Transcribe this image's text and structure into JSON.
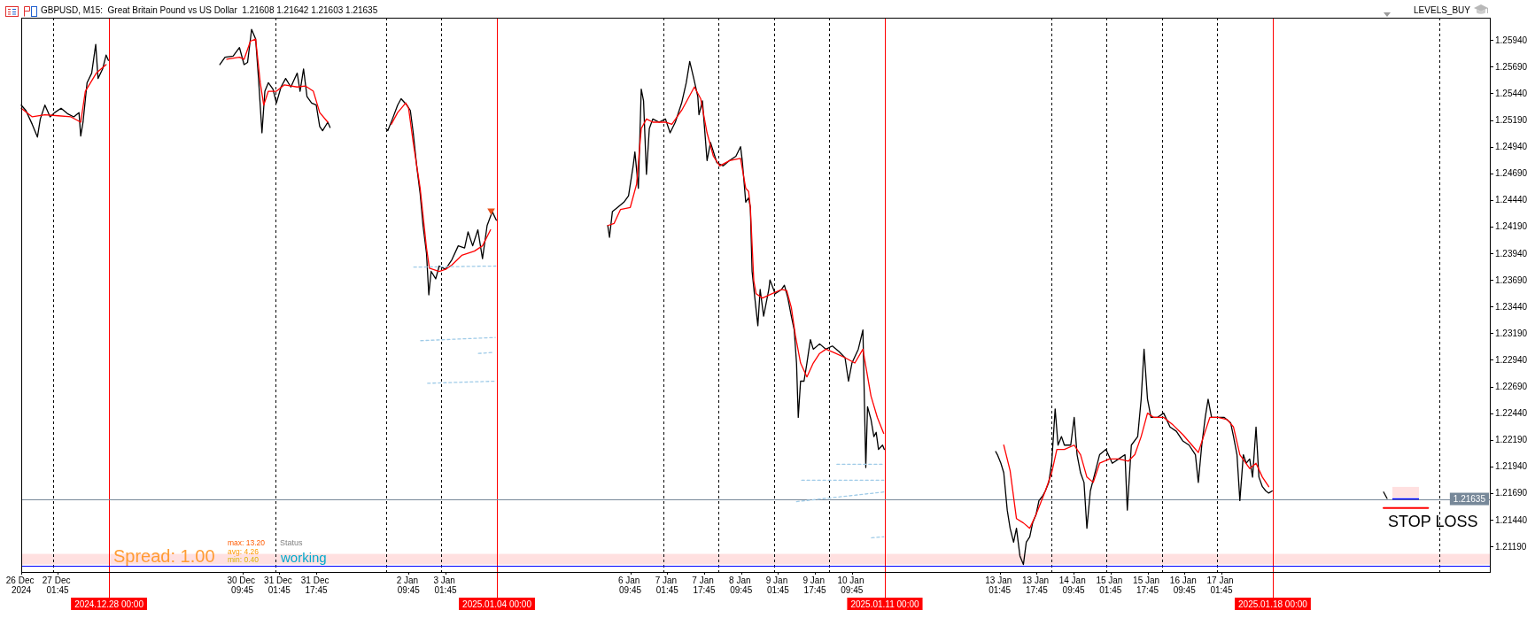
{
  "chart_data": {
    "type": "line",
    "title": "GBPUSD, M15:  Great Britain Pound vs US Dollar  1.21608 1.21642 1.21603 1.21635",
    "xlim": [
      "2024-12-26T10:00",
      "2025-01-21T22:00"
    ],
    "xticks": [
      {
        "value": "2024-12-26T10:00",
        "label": "26 Dec 2024"
      },
      {
        "value": "2024-12-27T01:45",
        "label": "27 Dec 01:45"
      },
      {
        "value": "2024-12-30T09:45",
        "label": "30 Dec 09:45"
      },
      {
        "value": "2024-12-31T01:45",
        "label": "31 Dec 01:45"
      },
      {
        "value": "2024-12-31T17:45",
        "label": "31 Dec 17:45"
      },
      {
        "value": "2025-01-02T09:45",
        "label": "2 Jan 09:45"
      },
      {
        "value": "2025-01-03T01:45",
        "label": "3 Jan 01:45"
      },
      {
        "value": "2025-01-06T09:45",
        "label": "6 Jan 09:45"
      },
      {
        "value": "2025-01-07T01:45",
        "label": "7 Jan 01:45"
      },
      {
        "value": "2025-01-07T17:45",
        "label": "7 Jan 17:45"
      },
      {
        "value": "2025-01-08T09:45",
        "label": "8 Jan 09:45"
      },
      {
        "value": "2025-01-09T01:45",
        "label": "9 Jan 01:45"
      },
      {
        "value": "2025-01-09T17:45",
        "label": "9 Jan 17:45"
      },
      {
        "value": "2025-01-10T09:45",
        "label": "10 Jan 09:45"
      },
      {
        "value": "2025-01-13T01:45",
        "label": "13 Jan 01:45"
      },
      {
        "value": "2025-01-13T17:45",
        "label": "13 Jan 17:45"
      },
      {
        "value": "2025-01-14T09:45",
        "label": "14 Jan 09:45"
      },
      {
        "value": "2025-01-15T01:45",
        "label": "15 Jan 01:45"
      },
      {
        "value": "2025-01-15T17:45",
        "label": "15 Jan 17:45"
      },
      {
        "value": "2025-01-16T09:45",
        "label": "16 Jan 09:45"
      },
      {
        "value": "2025-01-17T01:45",
        "label": "17 Jan 01:45"
      }
    ],
    "ylim": [
      1.2095,
      1.2615
    ],
    "yticks": [
      {
        "value": 1.2119,
        "label": "1.21190"
      },
      {
        "value": 1.2144,
        "label": "1.21440"
      },
      {
        "value": 1.2169,
        "label": "1.21690"
      },
      {
        "value": 1.2194,
        "label": "1.21940"
      },
      {
        "value": 1.2219,
        "label": "1.22190"
      },
      {
        "value": 1.2244,
        "label": "1.22440"
      },
      {
        "value": 1.2269,
        "label": "1.22690"
      },
      {
        "value": 1.2294,
        "label": "1.22940"
      },
      {
        "value": 1.2319,
        "label": "1.23190"
      },
      {
        "value": 1.2344,
        "label": "1.23440"
      },
      {
        "value": 1.2369,
        "label": "1.23690"
      },
      {
        "value": 1.2394,
        "label": "1.23940"
      },
      {
        "value": 1.2419,
        "label": "1.24190"
      },
      {
        "value": 1.2444,
        "label": "1.24440"
      },
      {
        "value": 1.2469,
        "label": "1.24690"
      },
      {
        "value": 1.2494,
        "label": "1.24940"
      },
      {
        "value": 1.2519,
        "label": "1.25190"
      },
      {
        "value": 1.2544,
        "label": "1.25440"
      },
      {
        "value": 1.2569,
        "label": "1.25690"
      },
      {
        "value": 1.2594,
        "label": "1.25940"
      }
    ],
    "series": [
      {
        "color": "#000000",
        "x": [
          "2024-12-26T10:00",
          "2024-12-26T12:00",
          "2024-12-26T14:45",
          "2024-12-26T17:00",
          "2024-12-26T18:15",
          "2024-12-26T20:15",
          "2024-12-26T22:30",
          "2024-12-27T00:30",
          "2024-12-27T03:15",
          "2024-12-27T06:00",
          "2024-12-27T08:45",
          "2024-12-27T11:00",
          "2024-12-27T11:45",
          "2024-12-27T12:45",
          "2024-12-27T14:30",
          "2024-12-27T16:30",
          "2024-12-27T18:15",
          "2024-12-27T19:15",
          "2024-12-27T21:15",
          "2024-12-27T22:45",
          "2024-12-27T23:45",
          "2024-12-29T00:00",
          "2024-12-30T00:00",
          "2024-12-30T02:15",
          "2024-12-30T05:45",
          "2024-12-30T08:30",
          "2024-12-30T10:30",
          "2024-12-30T12:00",
          "2024-12-30T13:45",
          "2024-12-30T15:30",
          "2024-12-30T16:45",
          "2024-12-30T18:15",
          "2024-12-30T19:30",
          "2024-12-30T21:00",
          "2024-12-30T23:00",
          "2024-12-31T00:30",
          "2024-12-31T02:30",
          "2024-12-31T04:30",
          "2024-12-31T06:45",
          "2024-12-31T09:30",
          "2024-12-31T10:45",
          "2024-12-31T12:15",
          "2024-12-31T13:45",
          "2024-12-31T15:45",
          "2024-12-31T17:45",
          "2024-12-31T19:15",
          "2024-12-31T20:30",
          "2024-12-31T22:45",
          "2024-12-31T23:45",
          "2025-01-01T12:00",
          "2025-01-02T00:00",
          "2025-01-02T00:45",
          "2025-01-02T02:45",
          "2025-01-02T05:00",
          "2025-01-02T06:30",
          "2025-01-02T09:00",
          "2025-01-02T10:30",
          "2025-01-02T11:45",
          "2025-01-02T13:15",
          "2025-01-02T14:45",
          "2025-01-02T16:00",
          "2025-01-02T17:30",
          "2025-01-02T18:30",
          "2025-01-02T19:30",
          "2025-01-02T21:30",
          "2025-01-02T23:00",
          "2025-01-03T01:45",
          "2025-01-03T04:30",
          "2025-01-03T07:15",
          "2025-01-03T10:00",
          "2025-01-03T11:30",
          "2025-01-03T13:30",
          "2025-01-03T15:45",
          "2025-01-03T17:45",
          "2025-01-03T19:45",
          "2025-01-03T22:00",
          "2025-01-03T23:45",
          "2025-01-05T00:00",
          "2025-01-06T00:00",
          "2025-01-06T00:45",
          "2025-01-06T02:00",
          "2025-01-06T04:15",
          "2025-01-06T07:00",
          "2025-01-06T09:00",
          "2025-01-06T11:00",
          "2025-01-06T11:45",
          "2025-01-06T13:15",
          "2025-01-06T14:30",
          "2025-01-06T15:30",
          "2025-01-06T16:45",
          "2025-01-06T18:00",
          "2025-01-06T19:30",
          "2025-01-06T22:15",
          "2025-01-07T01:00",
          "2025-01-07T03:00",
          "2025-01-07T05:15",
          "2025-01-07T08:00",
          "2025-01-07T10:00",
          "2025-01-07T11:30",
          "2025-01-07T13:15",
          "2025-01-07T15:00",
          "2025-01-07T15:30",
          "2025-01-07T17:00",
          "2025-01-07T18:00",
          "2025-01-07T19:00",
          "2025-01-07T20:30",
          "2025-01-07T23:15",
          "2025-01-08T02:00",
          "2025-01-08T04:45",
          "2025-01-08T07:30",
          "2025-01-08T09:30",
          "2025-01-08T10:15",
          "2025-01-08T11:45",
          "2025-01-08T13:00",
          "2025-01-08T13:45",
          "2025-01-08T14:30",
          "2025-01-08T15:45",
          "2025-01-08T17:00",
          "2025-01-08T18:00",
          "2025-01-08T19:30",
          "2025-01-08T21:45",
          "2025-01-08T22:15",
          "2025-01-09T00:30",
          "2025-01-09T03:15",
          "2025-01-09T04:30",
          "2025-01-09T06:00",
          "2025-01-09T07:30",
          "2025-01-09T08:45",
          "2025-01-09T09:45",
          "2025-01-09T10:30",
          "2025-01-09T11:30",
          "2025-01-09T13:00",
          "2025-01-09T14:15",
          "2025-01-09T15:45",
          "2025-01-09T17:00",
          "2025-01-09T19:45",
          "2025-01-09T22:30",
          "2025-01-10T01:15",
          "2025-01-10T04:00",
          "2025-01-10T06:45",
          "2025-01-10T08:15",
          "2025-01-10T09:45",
          "2025-01-10T12:30",
          "2025-01-10T14:30",
          "2025-01-10T15:45",
          "2025-01-10T16:30",
          "2025-01-10T18:00",
          "2025-01-10T19:15",
          "2025-01-10T20:15",
          "2025-01-10T21:15",
          "2025-01-10T23:00",
          "2025-01-10T23:45",
          "2025-01-12T00:00",
          "2025-01-13T00:00",
          "2025-01-13T00:45",
          "2025-01-13T02:15",
          "2025-01-13T03:30",
          "2025-01-13T05:00",
          "2025-01-13T06:15",
          "2025-01-13T07:45",
          "2025-01-13T09:00",
          "2025-01-13T10:30",
          "2025-01-13T12:00",
          "2025-01-13T13:15",
          "2025-01-13T14:45",
          "2025-01-13T16:00",
          "2025-01-13T17:30",
          "2025-01-13T18:45",
          "2025-01-13T20:15",
          "2025-01-13T21:30",
          "2025-01-13T23:00",
          "2025-01-14T00:15",
          "2025-01-14T01:45",
          "2025-01-14T03:00",
          "2025-01-14T04:30",
          "2025-01-14T05:45",
          "2025-01-14T08:30",
          "2025-01-14T10:00",
          "2025-01-14T11:15",
          "2025-01-14T12:45",
          "2025-01-14T14:15",
          "2025-01-14T15:30",
          "2025-01-14T17:00",
          "2025-01-14T19:00",
          "2025-01-14T21:00",
          "2025-01-14T23:45",
          "2025-01-15T02:30",
          "2025-01-15T05:15",
          "2025-01-15T08:00",
          "2025-01-15T09:00",
          "2025-01-15T10:45",
          "2025-01-15T13:30",
          "2025-01-15T15:00",
          "2025-01-15T16:15",
          "2025-01-15T17:45",
          "2025-01-15T19:15",
          "2025-01-15T22:00",
          "2025-01-16T00:45",
          "2025-01-16T03:30",
          "2025-01-16T06:15",
          "2025-01-16T09:00",
          "2025-01-16T11:45",
          "2025-01-16T14:30",
          "2025-01-16T15:45",
          "2025-01-16T17:15",
          "2025-01-16T18:45",
          "2025-01-16T20:00",
          "2025-01-16T21:30",
          "2025-01-17T00:15",
          "2025-01-17T03:00",
          "2025-01-17T05:45",
          "2025-01-17T07:00",
          "2025-01-17T08:30",
          "2025-01-17T09:45",
          "2025-01-17T11:15",
          "2025-01-17T12:30",
          "2025-01-17T14:00",
          "2025-01-17T15:15",
          "2025-01-17T16:45",
          "2025-01-17T18:00",
          "2025-01-17T19:30",
          "2025-01-17T21:00",
          "2025-01-17T22:15",
          "2025-01-17T23:45",
          "2025-01-19T00:00",
          "2025-01-20T00:00",
          "2025-01-20T01:30"
        ],
        "values": [
          1.2533,
          1.2528,
          1.2515,
          1.2503,
          1.252,
          1.2533,
          1.2522,
          1.2526,
          1.253,
          1.2525,
          1.2522,
          1.2526,
          1.2504,
          1.2517,
          1.2554,
          1.2563,
          1.259,
          1.2558,
          1.2567,
          1.258,
          1.2575,
          null,
          1.2571,
          1.2578,
          1.2579,
          1.2587,
          1.2571,
          1.2573,
          1.2604,
          1.2595,
          1.2558,
          1.2507,
          1.2546,
          1.2554,
          1.2548,
          1.2535,
          1.255,
          1.2558,
          1.255,
          1.2563,
          1.2546,
          1.2567,
          1.2541,
          1.2535,
          1.2533,
          1.2513,
          1.2509,
          1.2517,
          1.2512,
          null,
          1.2511,
          1.2509,
          1.252,
          1.2533,
          1.2539,
          1.2533,
          1.2528,
          1.2507,
          1.2476,
          1.245,
          1.242,
          1.2394,
          1.2355,
          1.2377,
          1.237,
          1.2382,
          1.2379,
          1.2388,
          1.2401,
          1.2399,
          1.2414,
          1.2401,
          1.2416,
          1.2389,
          1.242,
          1.2433,
          1.2425,
          null,
          1.242,
          1.2409,
          1.2433,
          1.2437,
          1.2442,
          1.2448,
          1.2476,
          1.2489,
          1.2455,
          1.2548,
          1.2537,
          1.2468,
          1.2511,
          1.252,
          1.2517,
          1.252,
          1.2507,
          1.2517,
          1.2535,
          1.2554,
          1.2574,
          1.2558,
          1.2541,
          1.2524,
          1.2537,
          1.2509,
          1.2481,
          1.2498,
          1.2479,
          1.2476,
          1.2481,
          1.2485,
          1.2494,
          1.2481,
          1.2442,
          1.2446,
          1.2437,
          1.2377,
          1.2351,
          1.2326,
          1.236,
          1.2335,
          1.236,
          1.2369,
          1.2356,
          1.236,
          1.2364,
          1.2352,
          1.2335,
          1.2322,
          1.2291,
          1.224,
          1.2274,
          1.2274,
          1.2291,
          1.2313,
          1.2304,
          1.2309,
          1.2304,
          1.2307,
          1.2302,
          1.2296,
          1.2274,
          1.2291,
          1.2304,
          1.2322,
          1.2193,
          1.225,
          1.2238,
          1.2222,
          1.2226,
          1.221,
          1.2214,
          1.221,
          null,
          1.2208,
          1.2205,
          1.2197,
          1.2188,
          1.2153,
          1.2136,
          1.2123,
          1.2136,
          1.211,
          1.2102,
          1.2123,
          1.2128,
          1.2141,
          1.2149,
          1.2162,
          1.2166,
          1.2171,
          1.2179,
          1.2197,
          1.2248,
          1.2214,
          1.2222,
          1.2214,
          1.2214,
          1.224,
          1.2205,
          1.2188,
          1.2179,
          1.2136,
          1.2171,
          1.2188,
          1.2205,
          1.221,
          1.2197,
          1.2201,
          1.2205,
          1.2153,
          1.2214,
          1.2222,
          1.2257,
          1.2304,
          1.2257,
          1.224,
          1.224,
          1.2244,
          1.2231,
          1.2227,
          1.2218,
          1.2214,
          1.2205,
          1.2179,
          1.2214,
          1.224,
          1.2257,
          1.224,
          1.224,
          1.224,
          1.2235,
          1.2222,
          1.2205,
          1.2162,
          1.2205,
          1.2197,
          1.2201,
          1.2184,
          1.2231,
          1.2184,
          1.2175,
          1.2171,
          1.2169,
          1.2171,
          null,
          1.217,
          1.2164
        ]
      },
      {
        "color": "#ff0000",
        "x": [
          "2024-12-26T10:00",
          "2024-12-26T14:45",
          "2024-12-26T20:15",
          "2024-12-27T02:00",
          "2024-12-27T07:30",
          "2024-12-27T11:45",
          "2024-12-27T13:45",
          "2024-12-27T18:30",
          "2024-12-27T22:45",
          "2024-12-29T00:00",
          "2024-12-30T03:00",
          "2024-12-30T08:30",
          "2024-12-30T10:30",
          "2024-12-30T13:15",
          "2024-12-30T15:30",
          "2024-12-30T17:30",
          "2024-12-30T19:00",
          "2024-12-30T21:00",
          "2024-12-31T00:30",
          "2024-12-31T04:00",
          "2024-12-31T09:30",
          "2024-12-31T13:00",
          "2024-12-31T16:30",
          "2024-12-31T19:15",
          "2024-12-31T22:45",
          "2025-01-01T12:00",
          "2025-01-02T02:15",
          "2025-01-02T05:00",
          "2025-01-02T08:30",
          "2025-01-02T09:45",
          "2025-01-02T11:45",
          "2025-01-02T14:45",
          "2025-01-02T17:30",
          "2025-01-02T18:45",
          "2025-01-02T23:00",
          "2025-01-03T01:45",
          "2025-01-03T04:30",
          "2025-01-03T08:45",
          "2025-01-03T14:15",
          "2025-01-03T17:45",
          "2025-01-03T21:15",
          "2025-01-05T00:00",
          "2025-01-06T00:00",
          "2025-01-06T02:45",
          "2025-01-06T05:30",
          "2025-01-06T09:45",
          "2025-01-06T12:30",
          "2025-01-06T14:30",
          "2025-01-06T16:45",
          "2025-01-06T19:30",
          "2025-01-07T01:00",
          "2025-01-07T03:45",
          "2025-01-07T08:00",
          "2025-01-07T13:30",
          "2025-01-07T16:15",
          "2025-01-07T19:00",
          "2025-01-07T21:45",
          "2025-01-08T00:30",
          "2025-01-08T04:45",
          "2025-01-08T09:30",
          "2025-01-08T11:45",
          "2025-01-08T13:00",
          "2025-01-08T13:45",
          "2025-01-08T15:15",
          "2025-01-08T16:15",
          "2025-01-08T19:00",
          "2025-01-08T23:00",
          "2025-01-09T03:15",
          "2025-01-09T05:30",
          "2025-01-09T07:30",
          "2025-01-09T09:15",
          "2025-01-09T11:30",
          "2025-01-09T14:15",
          "2025-01-09T17:00",
          "2025-01-09T19:45",
          "2025-01-09T22:30",
          "2025-01-10T02:45",
          "2025-01-10T06:45",
          "2025-01-10T11:00",
          "2025-01-10T14:30",
          "2025-01-10T16:00",
          "2025-01-10T18:00",
          "2025-01-10T20:45",
          "2025-01-10T23:30",
          "2025-01-12T00:00",
          "2025-01-13T03:30",
          "2025-01-13T06:15",
          "2025-01-13T09:00",
          "2025-01-13T12:00",
          "2025-01-13T14:45",
          "2025-01-13T17:30",
          "2025-01-13T21:30",
          "2025-01-14T00:15",
          "2025-01-14T02:30",
          "2025-01-14T05:45",
          "2025-01-14T10:00",
          "2025-01-14T12:45",
          "2025-01-14T15:30",
          "2025-01-14T18:15",
          "2025-01-14T21:00",
          "2025-01-15T01:15",
          "2025-01-15T05:15",
          "2025-01-15T09:30",
          "2025-01-15T12:15",
          "2025-01-15T15:00",
          "2025-01-15T17:45",
          "2025-01-15T20:30",
          "2025-01-16T00:45",
          "2025-01-16T04:45",
          "2025-01-16T09:00",
          "2025-01-16T13:00",
          "2025-01-16T15:45",
          "2025-01-16T18:45",
          "2025-01-16T20:45",
          "2025-01-17T00:15",
          "2025-01-17T04:15",
          "2025-01-17T07:00",
          "2025-01-17T09:45",
          "2025-01-17T14:00",
          "2025-01-17T16:45",
          "2025-01-17T19:30",
          "2025-01-17T22:15"
        ],
        "values": [
          1.253,
          1.2522,
          1.2524,
          1.2523,
          1.2522,
          1.2517,
          1.2546,
          1.2563,
          1.2571,
          null,
          1.2576,
          1.2578,
          1.2576,
          1.2593,
          1.2595,
          1.2554,
          1.2533,
          1.2546,
          1.2546,
          1.2552,
          1.255,
          1.2551,
          1.2546,
          1.2526,
          1.2517,
          null,
          1.2515,
          1.2526,
          1.2535,
          1.253,
          1.2498,
          1.2455,
          1.2399,
          1.238,
          1.2377,
          1.2379,
          1.2383,
          1.2392,
          1.2396,
          1.2401,
          1.2416,
          null,
          1.242,
          1.2422,
          1.2435,
          1.2437,
          1.2459,
          1.2511,
          1.252,
          1.2517,
          1.2517,
          1.2515,
          1.2528,
          1.255,
          1.2539,
          1.2507,
          1.2485,
          1.2476,
          1.2481,
          1.2483,
          1.2455,
          1.2452,
          1.2437,
          1.2368,
          1.2356,
          1.2352,
          1.2356,
          1.236,
          1.2359,
          1.2343,
          1.2317,
          1.2291,
          1.2278,
          1.2291,
          1.23,
          1.2304,
          1.23,
          1.2296,
          1.2291,
          1.2304,
          1.2285,
          1.226,
          1.224,
          1.2225,
          null,
          1.2214,
          1.219,
          1.2145,
          1.2141,
          1.2136,
          1.2149,
          1.2171,
          1.2188,
          1.221,
          1.221,
          1.2214,
          1.2205,
          1.2184,
          1.2179,
          1.2197,
          1.2201,
          1.2201,
          1.2199,
          1.2205,
          1.2222,
          1.2244,
          1.224,
          1.224,
          1.2233,
          1.2224,
          1.2214,
          1.2207,
          1.2227,
          1.224,
          1.224,
          1.2238,
          1.2231,
          1.2205,
          1.2192,
          1.2197,
          1.2184,
          1.2175
        ]
      },
      {
        "color": "#9fcbe8",
        "line_style": "dashed",
        "x": [
          "2025-01-02T12:00",
          "2025-01-03T23:30"
        ],
        "values": [
          1.2381,
          1.2382
        ]
      },
      {
        "color": "#9fcbe8",
        "line_style": "dashed",
        "x": [
          "2025-01-02T15:00",
          "2025-01-03T23:15"
        ],
        "values": [
          1.2312,
          1.2315
        ]
      },
      {
        "color": "#9fcbe8",
        "line_style": "dashed",
        "x": [
          "2025-01-03T16:00",
          "2025-01-03T22:45"
        ],
        "values": [
          1.23,
          1.2301
        ]
      },
      {
        "color": "#9fcbe8",
        "line_style": "dashed",
        "x": [
          "2025-01-02T18:00",
          "2025-01-03T23:15"
        ],
        "values": [
          1.2272,
          1.2274
        ]
      },
      {
        "color": "#9fcbe8",
        "line_style": "dashed",
        "x": [
          "2025-01-10T03:15",
          "2025-01-10T23:30"
        ],
        "values": [
          1.2196,
          1.2196
        ]
      },
      {
        "color": "#9fcbe8",
        "line_style": "dashed",
        "x": [
          "2025-01-09T12:00",
          "2025-01-10T23:30"
        ],
        "values": [
          1.2181,
          1.2181
        ]
      },
      {
        "color": "#9fcbe8",
        "line_style": "dashed",
        "x": [
          "2025-01-09T09:45",
          "2025-01-10T23:30"
        ],
        "values": [
          1.2161,
          1.217
        ]
      },
      {
        "color": "#9fcbe8",
        "line_style": "dashed",
        "x": [
          "2025-01-10T18:15",
          "2025-01-10T23:30"
        ],
        "values": [
          1.2127,
          1.2128
        ]
      },
      {
        "type": "scatter",
        "color": "#e8501a",
        "marker": "triangle",
        "x": [
          "2025-01-03T21:30"
        ],
        "values": [
          1.2434
        ]
      },
      {
        "name": "STOP LOSS",
        "color": "#ff0000",
        "x": [
          "2025-01-20T00:00",
          "2025-01-20T19:15"
        ],
        "values": [
          1.2155,
          1.2155
        ]
      }
    ],
    "ref_lines": [
      {
        "axis": "x",
        "value": "2024-12-27",
        "color": "#000000",
        "line_style": "dashed"
      },
      {
        "axis": "x",
        "value": "2024-12-31",
        "color": "#000000",
        "line_style": "dashed"
      },
      {
        "axis": "x",
        "value": "2025-01-02",
        "color": "#000000",
        "line_style": "dashed"
      },
      {
        "axis": "x",
        "value": "2025-01-03",
        "color": "#000000",
        "line_style": "dashed"
      },
      {
        "axis": "x",
        "value": "2025-01-07",
        "color": "#000000",
        "line_style": "dashed"
      },
      {
        "axis": "x",
        "value": "2025-01-08",
        "color": "#000000",
        "line_style": "dashed"
      },
      {
        "axis": "x",
        "value": "2025-01-09",
        "color": "#000000",
        "line_style": "dashed"
      },
      {
        "axis": "x",
        "value": "2025-01-10",
        "color": "#000000",
        "line_style": "dashed"
      },
      {
        "axis": "x",
        "value": "2025-01-14",
        "color": "#000000",
        "line_style": "dashed"
      },
      {
        "axis": "x",
        "value": "2025-01-15",
        "color": "#000000",
        "line_style": "dashed"
      },
      {
        "axis": "x",
        "value": "2025-01-16",
        "color": "#000000",
        "line_style": "dashed"
      },
      {
        "axis": "x",
        "value": "2025-01-17",
        "color": "#000000",
        "line_style": "dashed"
      },
      {
        "axis": "x",
        "value": "2025-01-21",
        "color": "#000000",
        "line_style": "dashed"
      },
      {
        "axis": "x",
        "value": "2024-12-28T00:00",
        "label": "2024.12.28 00:00",
        "color": "#ff0000"
      },
      {
        "axis": "x",
        "value": "2025-01-04T00:00",
        "label": "2025.01.04 00:00",
        "color": "#ff0000"
      },
      {
        "axis": "x",
        "value": "2025-01-11T00:00",
        "label": "2025.01.11 00:00",
        "color": "#ff0000"
      },
      {
        "axis": "x",
        "value": "2025-01-18T00:00",
        "label": "2025.01.18 00:00",
        "color": "#ff0000"
      },
      {
        "axis": "y",
        "value": 1.21635,
        "label": "1.21635",
        "color": "#778899"
      },
      {
        "axis": "y",
        "value": 1.2101,
        "color": "#0000ff"
      }
    ],
    "bands": [
      {
        "axis": "y",
        "from": 1.2102,
        "to": 1.2112,
        "color": "#ffe0e0"
      }
    ],
    "annotations": [
      "LEVELS_BUY",
      "Spread: 1.00",
      "max: 13.20",
      "avg: 4.26",
      "min: 0.40",
      "Status",
      "working"
    ]
  }
}
